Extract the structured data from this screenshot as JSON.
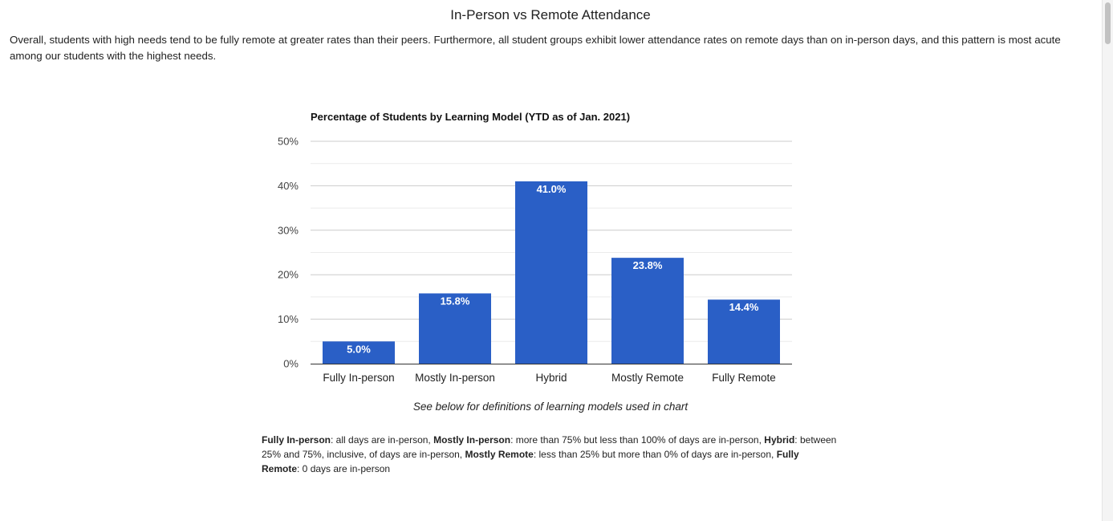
{
  "page": {
    "title": "In-Person vs Remote Attendance",
    "intro": "Overall, students with high needs tend to be fully remote at greater rates than their peers. Furthermore, all student groups exhibit lower attendance rates on remote days than on in-person days, and this pattern is most acute among our students with the highest needs.",
    "note": "See below for definitions of learning models used in chart"
  },
  "definitions": [
    {
      "term": "Fully In-person",
      "text": ": all days are in-person, "
    },
    {
      "term": "Mostly In-person",
      "text": ": more than 75% but less than 100% of days are in-person, "
    },
    {
      "term": "Hybrid",
      "text": ": between 25% and 75%, inclusive, of days are in-person, "
    },
    {
      "term": "Mostly Remote",
      "text": ": less than 25% but more than 0% of days are in-person, "
    },
    {
      "term": "Fully Remote",
      "text": ": 0 days are in-person"
    }
  ],
  "colors": {
    "bar": "#2a5fc6",
    "gridline": "#cccccc",
    "minor_gridline": "#ebebeb",
    "axis": "#333333"
  },
  "chart_data": {
    "type": "bar",
    "title": "Percentage of Students by Learning Model (YTD as of Jan. 2021)",
    "categories": [
      "Fully In-person",
      "Mostly In-person",
      "Hybrid",
      "Mostly Remote",
      "Fully Remote"
    ],
    "values": [
      5.0,
      15.8,
      41.0,
      23.8,
      14.4
    ],
    "data_labels": [
      "5.0%",
      "15.8%",
      "41.0%",
      "23.8%",
      "14.4%"
    ],
    "ylim": [
      0,
      50
    ],
    "yticks": [
      0,
      10,
      20,
      30,
      40,
      50
    ],
    "ytick_labels": [
      "0%",
      "10%",
      "20%",
      "30%",
      "40%",
      "50%"
    ],
    "xlabel": "",
    "ylabel": "",
    "grid": true,
    "legend": "none"
  }
}
